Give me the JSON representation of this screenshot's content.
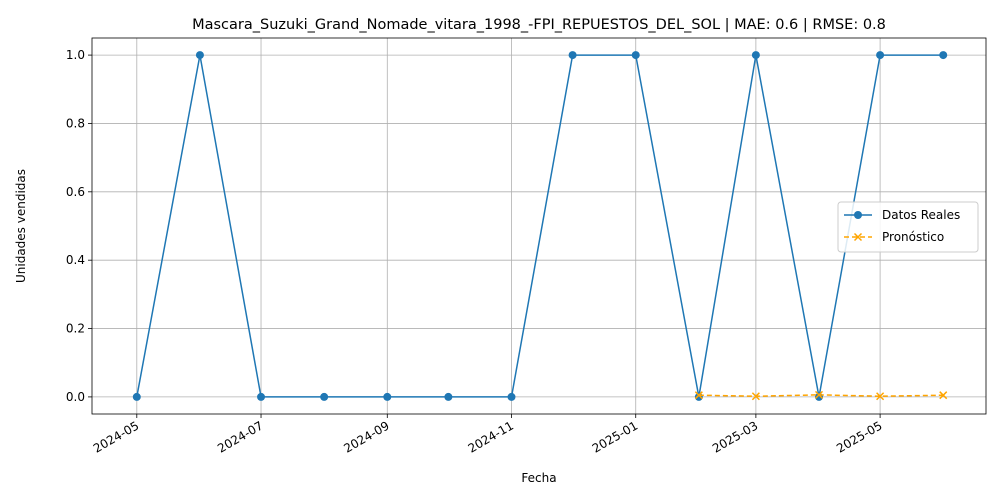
{
  "chart_data": {
    "type": "line",
    "title": "Mascara_Suzuki_Grand_Nomade_vitara_1998_-FPI_REPUESTOS_DEL_SOL | MAE: 0.6 | RMSE: 0.8",
    "xlabel": "Fecha",
    "ylabel": "Unidades vendidas",
    "ylim": [
      -0.05,
      1.05
    ],
    "xlim": [
      "2024-04-09",
      "2025-06-22"
    ],
    "x_ticks": [
      "2024-05",
      "2024-07",
      "2024-09",
      "2024-11",
      "2025-01",
      "2025-03",
      "2025-05"
    ],
    "y_ticks": [
      "0.0",
      "0.2",
      "0.4",
      "0.6",
      "0.8",
      "1.0"
    ],
    "grid": true,
    "legend_position": "center-right",
    "series": [
      {
        "name": "Datos Reales",
        "color": "#1f77b4",
        "marker": "circle",
        "line_style": "solid",
        "x": [
          "2024-05-01",
          "2024-06-01",
          "2024-07-01",
          "2024-08-01",
          "2024-09-01",
          "2024-10-01",
          "2024-11-01",
          "2024-12-01",
          "2025-01-01",
          "2025-02-01",
          "2025-03-01",
          "2025-04-01",
          "2025-05-01",
          "2025-06-01"
        ],
        "values": [
          0,
          1,
          0,
          0,
          0,
          0,
          0,
          1,
          1,
          0,
          1,
          0,
          1,
          1
        ]
      },
      {
        "name": "Pronóstico",
        "color": "#ffa500",
        "marker": "x",
        "line_style": "dashed",
        "x": [
          "2025-02-01",
          "2025-03-01",
          "2025-04-01",
          "2025-05-01",
          "2025-06-01"
        ],
        "values": [
          0.005,
          0.002,
          0.006,
          0.002,
          0.005
        ]
      }
    ]
  }
}
